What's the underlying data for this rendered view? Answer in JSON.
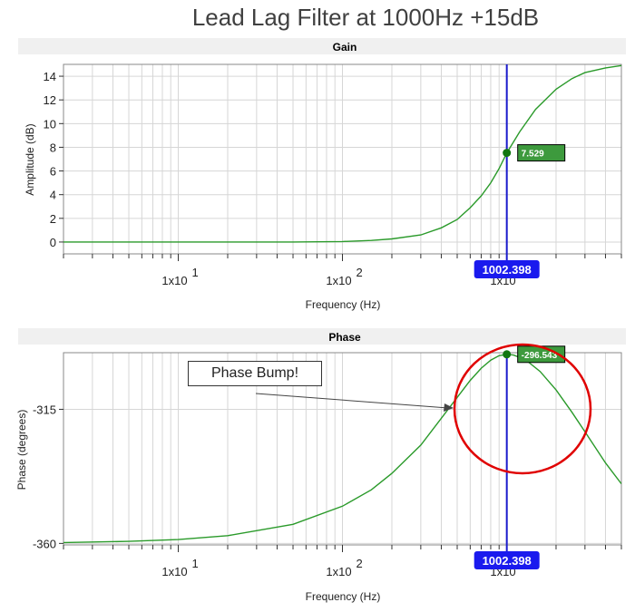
{
  "title": "Lead Lag Filter at 1000Hz +15dB",
  "annotation": "Phase Bump!",
  "colors": {
    "curve": "#2a9a2a",
    "cursor": "#1a1acc",
    "highlight": "#ee0000",
    "badge": "#1a1aee"
  },
  "chart_data": [
    {
      "type": "line",
      "title": "Gain",
      "xlabel": "Frequency (Hz)",
      "ylabel": "Amplitude (dB)",
      "xscale": "log",
      "xlim": [
        2,
        5000
      ],
      "ylim": [
        -1,
        15
      ],
      "yticks": [
        0,
        2,
        4,
        6,
        8,
        10,
        12,
        14
      ],
      "xtick_labels": [
        {
          "value": 10,
          "label": "1x10",
          "exp": "1"
        },
        {
          "value": 100,
          "label": "1x10",
          "exp": "2"
        },
        {
          "value": 1000,
          "label": "1x10",
          "exp": ""
        }
      ],
      "grid": true,
      "series": [
        {
          "x": [
            2,
            10,
            50,
            100,
            150,
            200,
            300,
            400,
            500,
            600,
            700,
            800,
            900,
            1002.398,
            1200,
            1500,
            2000,
            2500,
            3000,
            4000,
            5000
          ],
          "values": [
            0,
            0,
            0,
            0.04,
            0.13,
            0.26,
            0.6,
            1.2,
            1.9,
            2.9,
            3.9,
            5.0,
            6.2,
            7.529,
            9.3,
            11.2,
            12.9,
            13.8,
            14.3,
            14.7,
            14.9
          ]
        }
      ],
      "cursor": {
        "x": 1002.398,
        "label": "1002.398",
        "y": 7.529,
        "value_label": "7.529"
      }
    },
    {
      "type": "line",
      "title": "Phase",
      "xlabel": "Frequency (Hz)",
      "ylabel": "Phase (degrees)",
      "xscale": "log",
      "xlim": [
        2,
        5000
      ],
      "ylim": [
        -360.5,
        -296
      ],
      "yticks": [
        -315,
        -360
      ],
      "xtick_labels": [
        {
          "value": 10,
          "label": "1x10",
          "exp": "1"
        },
        {
          "value": 100,
          "label": "1x10",
          "exp": "2"
        },
        {
          "value": 1000,
          "label": "1x10",
          "exp": ""
        }
      ],
      "grid": true,
      "series": [
        {
          "x": [
            2,
            5,
            10,
            20,
            50,
            100,
            150,
            200,
            300,
            400,
            500,
            600,
            700,
            800,
            900,
            1002.398,
            1100,
            1300,
            1600,
            2000,
            2500,
            3000,
            4000,
            5000
          ],
          "values": [
            -359.7,
            -359.3,
            -358.7,
            -357.4,
            -353.6,
            -347.5,
            -342,
            -336.5,
            -327,
            -318,
            -311,
            -305.3,
            -301.2,
            -298.5,
            -297.0,
            -296.543,
            -296.8,
            -298.3,
            -302.3,
            -308.5,
            -316,
            -322.5,
            -333,
            -340
          ]
        }
      ],
      "cursor": {
        "x": 1002.398,
        "label": "1002.398",
        "y": -296.543,
        "value_label": "-296.543"
      }
    }
  ]
}
